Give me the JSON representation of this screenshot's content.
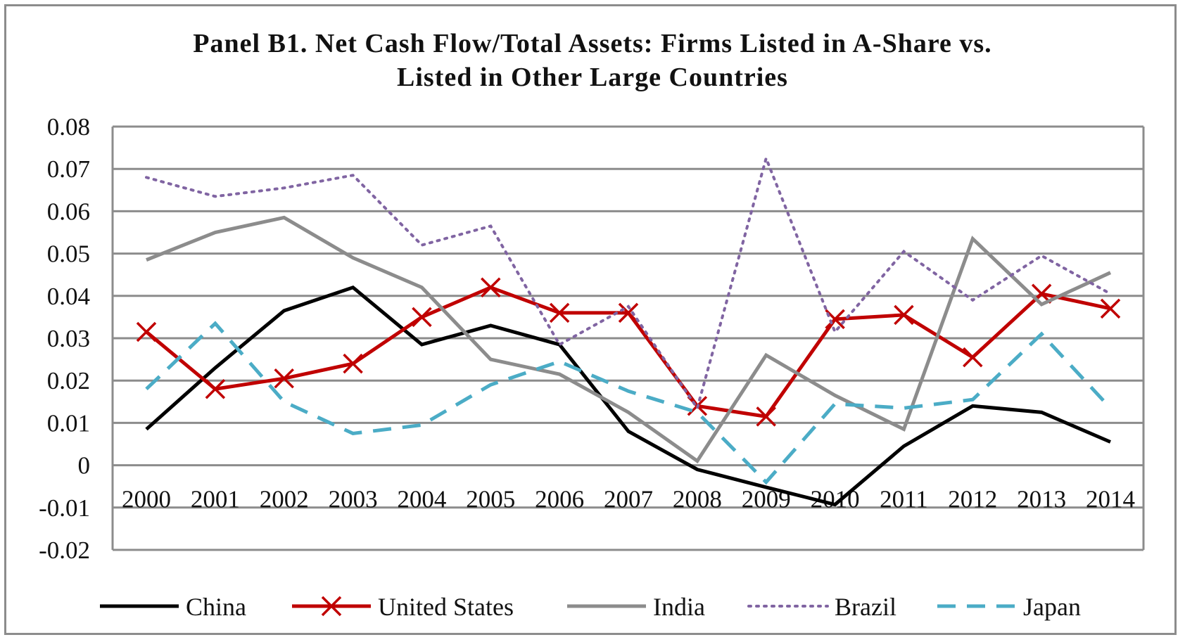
{
  "chart_data": {
    "type": "line",
    "title": "Panel B1. Net Cash Flow/Total   Assets: Firms Listed in A-Share vs.",
    "subtitle": "Listed in Other Large Countries",
    "xlabel": "",
    "ylabel": "",
    "ylim": [
      -0.02,
      0.08
    ],
    "ytick_labels": [
      "0.08",
      "0.07",
      "0.06",
      "0.05",
      "0.04",
      "0.03",
      "0.02",
      "0.01",
      "0",
      "-0.01",
      "-0.02"
    ],
    "yticks": [
      0.08,
      0.07,
      0.06,
      0.05,
      0.04,
      0.03,
      0.02,
      0.01,
      0,
      -0.01,
      -0.02
    ],
    "categories": [
      "2000",
      "2001",
      "2002",
      "2003",
      "2004",
      "2005",
      "2006",
      "2007",
      "2008",
      "2009",
      "2010",
      "2011",
      "2012",
      "2013",
      "2014"
    ],
    "grid": true,
    "legend_position": "bottom",
    "series": [
      {
        "name": "China",
        "color": "#000000",
        "style": "solid",
        "marker": "none",
        "values": [
          0.0085,
          0.023,
          0.0365,
          0.042,
          0.0285,
          0.033,
          0.0285,
          0.008,
          -0.001,
          -0.0052,
          -0.0093,
          0.0045,
          0.014,
          0.0125,
          0.0055
        ]
      },
      {
        "name": "United States",
        "color": "#c00000",
        "style": "solid",
        "marker": "x",
        "values": [
          0.0315,
          0.018,
          0.0205,
          0.024,
          0.035,
          0.042,
          0.036,
          0.036,
          0.014,
          0.0115,
          0.0345,
          0.0355,
          0.0255,
          0.0405,
          0.037
        ]
      },
      {
        "name": "India",
        "color": "#8c8c8c",
        "style": "solid",
        "marker": "none",
        "values": [
          0.0485,
          0.055,
          0.0585,
          0.049,
          0.042,
          0.025,
          0.0215,
          0.0125,
          0.001,
          0.026,
          0.0165,
          0.0085,
          0.0535,
          0.038,
          0.0455
        ]
      },
      {
        "name": "Brazil",
        "color": "#8064a2",
        "style": "dotted",
        "marker": "none",
        "values": [
          0.068,
          0.0635,
          0.0655,
          0.0685,
          0.052,
          0.0565,
          0.0285,
          0.0375,
          0.0135,
          0.0725,
          0.0315,
          0.0505,
          0.039,
          0.0495,
          0.0405
        ]
      },
      {
        "name": "Japan",
        "color": "#4bacc6",
        "style": "dashed",
        "marker": "none",
        "values": [
          0.018,
          0.0335,
          0.015,
          0.0075,
          0.0095,
          0.019,
          0.0245,
          0.0175,
          0.0125,
          -0.004,
          0.0145,
          0.0135,
          0.0155,
          0.031,
          0.0135
        ]
      }
    ]
  }
}
